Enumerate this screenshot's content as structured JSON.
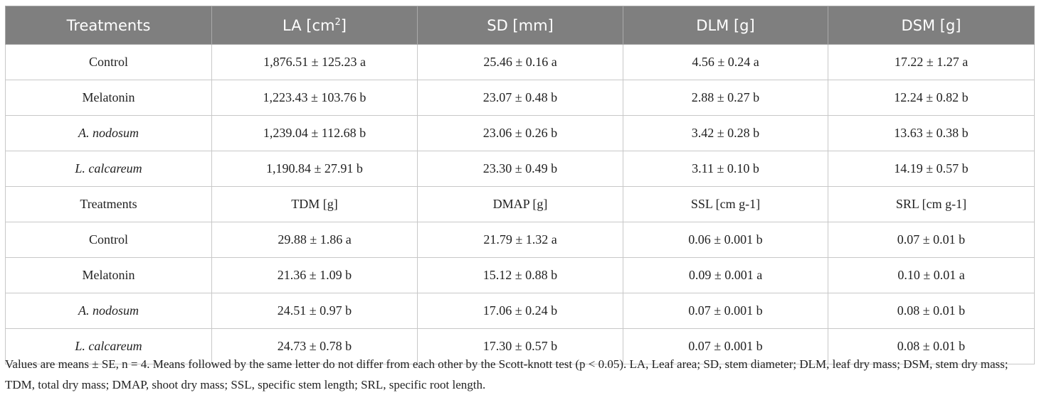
{
  "header": [
    "Treatments",
    "LA [cm",
    "SD [mm]",
    "DLM [g]",
    "DSM [g]"
  ],
  "header_sup": "2",
  "rows": [
    {
      "t": "Control",
      "italic": false,
      "c": [
        "1,876.51 ± 125.23 a",
        "25.46 ± 0.16 a",
        "4.56 ± 0.24 a",
        "17.22 ± 1.27 a"
      ]
    },
    {
      "t": "Melatonin",
      "italic": false,
      "c": [
        "1,223.43 ± 103.76 b",
        "23.07 ± 0.48 b",
        "2.88 ± 0.27 b",
        "12.24 ± 0.82 b"
      ]
    },
    {
      "t": "A. nodosum",
      "italic": true,
      "c": [
        "1,239.04 ± 112.68 b",
        "23.06 ± 0.26 b",
        "3.42 ± 0.28 b",
        "13.63 ± 0.38 b"
      ]
    },
    {
      "t": "L. calcareum",
      "italic": true,
      "c": [
        "1,190.84 ± 27.91 b",
        "23.30 ± 0.49 b",
        "3.11 ± 0.10 b",
        "14.19 ± 0.57 b"
      ]
    },
    {
      "t": "Treatments",
      "italic": false,
      "c": [
        "TDM [g]",
        "DMAP [g]",
        "SSL [cm g-1]",
        "SRL [cm g-1]"
      ]
    },
    {
      "t": "Control",
      "italic": false,
      "c": [
        "29.88 ± 1.86 a",
        "21.79 ± 1.32 a",
        "0.06 ± 0.001 b",
        "0.07 ± 0.01 b"
      ]
    },
    {
      "t": "Melatonin",
      "italic": false,
      "c": [
        "21.36 ± 1.09 b",
        "15.12 ± 0.88 b",
        "0.09 ± 0.001 a",
        "0.10 ± 0.01 a"
      ]
    },
    {
      "t": "A. nodosum",
      "italic": true,
      "c": [
        "24.51 ± 0.97 b",
        "17.06 ± 0.24 b",
        "0.07 ± 0.001 b",
        "0.08 ± 0.01 b"
      ]
    },
    {
      "t": "L. calcareum",
      "italic": true,
      "c": [
        "24.73 ± 0.78 b",
        "17.30 ± 0.57 b",
        "0.07 ± 0.001 b",
        "0.08 ± 0.01 b"
      ]
    }
  ],
  "footnote": "Values are means ± SE, n = 4. Means followed by the same letter do not differ from each other by the Scott-knott test (p < 0.05). LA, Leaf area; SD, stem diameter; DLM, leaf dry mass; DSM, stem dry mass; TDM, total dry mass; DMAP, shoot dry mass; SSL, specific stem length; SRL, specific root length."
}
